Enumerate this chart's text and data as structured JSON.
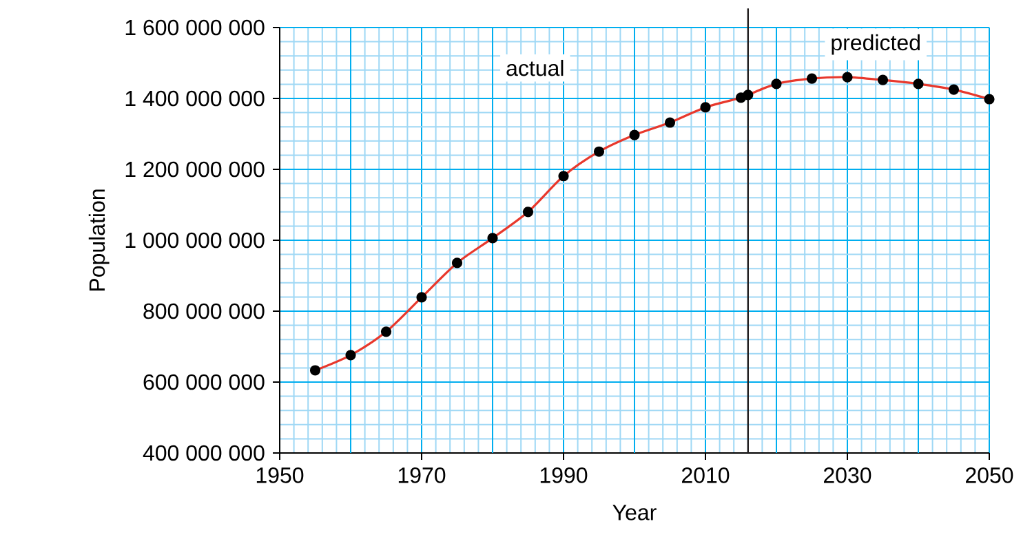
{
  "chart_data": {
    "type": "line",
    "xlabel": "Year",
    "ylabel": "Population",
    "x": [
      1955,
      1960,
      1965,
      1970,
      1975,
      1980,
      1985,
      1990,
      1995,
      2000,
      2005,
      2010,
      2015,
      2016,
      2020,
      2025,
      2030,
      2035,
      2040,
      2045,
      2050
    ],
    "series": [
      {
        "color": "#e8382c",
        "values": [
          633000000,
          676000000,
          742000000,
          839000000,
          936000000,
          1006000000,
          1080000000,
          1181000000,
          1250000000,
          1297000000,
          1332000000,
          1375000000,
          1402000000,
          1410000000,
          1441000000,
          1456000000,
          1460000000,
          1452000000,
          1441000000,
          1425000000,
          1398000000
        ]
      }
    ],
    "xlim": [
      1950,
      2050
    ],
    "xticks": [
      1950,
      {
        "value": 1952,
        "label": null
      },
      {
        "value": 1954,
        "label": null
      },
      {
        "value": 1956,
        "label": null
      },
      {
        "value": 1958,
        "label": null
      },
      {
        "value": 1960,
        "label": null
      },
      {
        "value": 1962,
        "label": null
      },
      {
        "value": 1964,
        "label": null
      },
      {
        "value": 1966,
        "label": null
      },
      {
        "value": 1968,
        "label": null
      },
      1970,
      {
        "value": 1972,
        "label": null
      },
      {
        "value": 1974,
        "label": null
      },
      {
        "value": 1976,
        "label": null
      },
      {
        "value": 1978,
        "label": null
      },
      {
        "value": 1980,
        "label": null
      },
      {
        "value": 1982,
        "label": null
      },
      {
        "value": 1984,
        "label": null
      },
      {
        "value": 1986,
        "label": null
      },
      {
        "value": 1988,
        "label": null
      },
      1990,
      {
        "value": 1992,
        "label": null
      },
      {
        "value": 1994,
        "label": null
      },
      {
        "value": 1996,
        "label": null
      },
      {
        "value": 1998,
        "label": null
      },
      {
        "value": 2000,
        "label": null
      },
      {
        "value": 2002,
        "label": null
      },
      {
        "value": 2004,
        "label": null
      },
      {
        "value": 2006,
        "label": null
      },
      {
        "value": 2008,
        "label": null
      },
      2010,
      {
        "value": 2012,
        "label": null
      },
      {
        "value": 2014,
        "label": null
      },
      {
        "value": 2016,
        "label": null
      },
      {
        "value": 2018,
        "label": null
      },
      {
        "value": 2020,
        "label": null
      },
      {
        "value": 2022,
        "label": null
      },
      {
        "value": 2024,
        "label": null
      },
      {
        "value": 2026,
        "label": null
      },
      {
        "value": 2028,
        "label": null
      },
      2030,
      {
        "value": 2032,
        "label": null
      },
      {
        "value": 2034,
        "label": null
      },
      {
        "value": 2036,
        "label": null
      },
      {
        "value": 2038,
        "label": null
      },
      {
        "value": 2040,
        "label": null
      },
      {
        "value": 2042,
        "label": null
      },
      {
        "value": 2044,
        "label": null
      },
      {
        "value": 2046,
        "label": null
      },
      {
        "value": 2048,
        "label": null
      },
      2050
    ],
    "ylim": [
      400000000,
      1600000000
    ],
    "yticks": [
      {
        "value": 400000000,
        "label": "400 000 000"
      },
      {
        "value": 440000000,
        "label": null
      },
      {
        "value": 480000000,
        "label": null
      },
      {
        "value": 520000000,
        "label": null
      },
      {
        "value": 560000000,
        "label": null
      },
      {
        "value": 600000000,
        "label": "600 000 000"
      },
      {
        "value": 640000000,
        "label": null
      },
      {
        "value": 680000000,
        "label": null
      },
      {
        "value": 720000000,
        "label": null
      },
      {
        "value": 760000000,
        "label": null
      },
      {
        "value": 800000000,
        "label": "800 000 000"
      },
      {
        "value": 840000000,
        "label": null
      },
      {
        "value": 880000000,
        "label": null
      },
      {
        "value": 920000000,
        "label": null
      },
      {
        "value": 960000000,
        "label": null
      },
      {
        "value": 1000000000,
        "label": "1 000 000 000"
      },
      {
        "value": 1040000000,
        "label": null
      },
      {
        "value": 1080000000,
        "label": null
      },
      {
        "value": 1120000000,
        "label": null
      },
      {
        "value": 1160000000,
        "label": null
      },
      {
        "value": 1200000000,
        "label": "1 200 000 000"
      },
      {
        "value": 1240000000,
        "label": null
      },
      {
        "value": 1280000000,
        "label": null
      },
      {
        "value": 1320000000,
        "label": null
      },
      {
        "value": 1360000000,
        "label": null
      },
      {
        "value": 1400000000,
        "label": "1 400 000 000"
      },
      {
        "value": 1440000000,
        "label": null
      },
      {
        "value": 1480000000,
        "label": null
      },
      {
        "value": 1520000000,
        "label": null
      },
      {
        "value": 1560000000,
        "label": null
      },
      {
        "value": 1600000000,
        "label": "1 600 000 000"
      }
    ],
    "ref_lines": [
      {
        "axis": "x",
        "value": 2016,
        "color": "#231f20"
      }
    ],
    "annotations": [
      "actual",
      "predicted"
    ],
    "grid": true,
    "marker": "circle",
    "line_style": "solid"
  }
}
